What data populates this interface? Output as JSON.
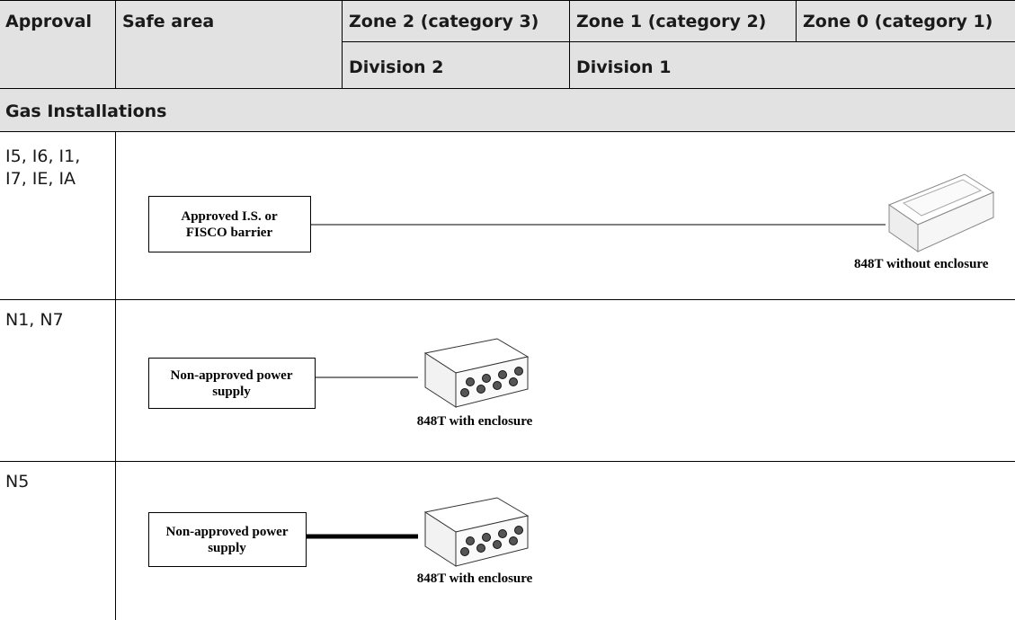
{
  "table": {
    "header": {
      "row1": [
        "Approval",
        "Safe area",
        "Zone 2 (category 3)",
        "Zone 1 (category 2)",
        "Zone 0 (category 1)"
      ],
      "row2": [
        "Division 2",
        "Division 1"
      ]
    },
    "section": "Gas Installations",
    "rows": [
      {
        "approval": [
          "I5, I6, I1,",
          "I7, IE, IA"
        ],
        "box": [
          "Approved I.S. or",
          "FISCO barrier"
        ],
        "caption": "848T without enclosure"
      },
      {
        "approval": [
          "N1, N7"
        ],
        "box": [
          "Non-approved power",
          "supply"
        ],
        "caption": "848T with enclosure"
      },
      {
        "approval": [
          "N5"
        ],
        "box": [
          "Non-approved power",
          "supply"
        ],
        "caption": "848T with enclosure"
      }
    ]
  }
}
